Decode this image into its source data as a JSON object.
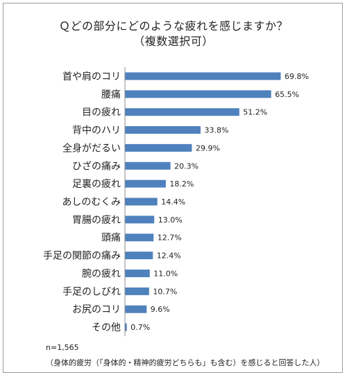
{
  "chart_data": {
    "type": "bar",
    "orientation": "horizontal",
    "title": "Ｑどの部分にどのような疲れを感じますか？",
    "subtitle": "（複数選択可）",
    "categories": [
      "首や肩のコリ",
      "腰痛",
      "目の疲れ",
      "背中のハリ",
      "全身がだるい",
      "ひざの痛み",
      "足裏の疲れ",
      "あしのむくみ",
      "胃腸の疲れ",
      "頭痛",
      "手足の関節の痛み",
      "腕の疲れ",
      "手足のしびれ",
      "お尻のコリ",
      "その他"
    ],
    "values": [
      69.8,
      65.5,
      51.2,
      33.8,
      29.9,
      20.3,
      18.2,
      14.4,
      13.0,
      12.7,
      12.4,
      11.0,
      10.7,
      9.6,
      0.7
    ],
    "value_labels": [
      "69.8%",
      "65.5%",
      "51.2%",
      "33.8%",
      "29.9%",
      "20.3%",
      "18.2%",
      "14.4%",
      "13.0%",
      "12.7%",
      "12.4%",
      "11.0%",
      "10.7%",
      "9.6%",
      "0.7%"
    ],
    "xlim": [
      0,
      80
    ],
    "bar_color": "#4f81bd",
    "grid": false,
    "legend": "none"
  },
  "footnote": {
    "n": "n=1,565",
    "note": "（身体的疲労（「身体的・精神的疲労どちらも」も含む）を感じると回答した人）"
  }
}
